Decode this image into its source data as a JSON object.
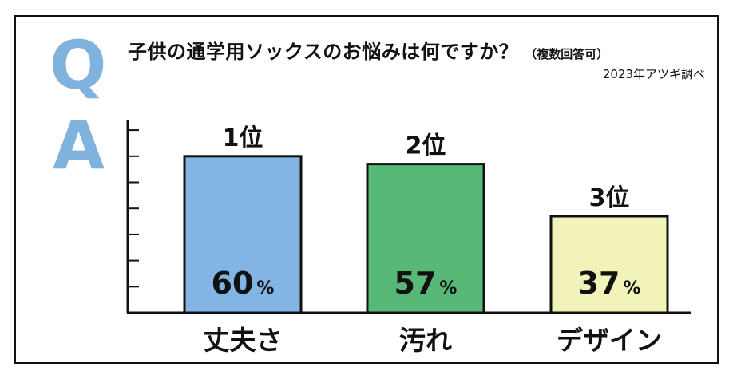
{
  "qa": {
    "q": "Q",
    "a": "A"
  },
  "title": "子供の通学用ソックスのお悩みは何ですか？",
  "title_note": "（複数回答可）",
  "survey_note": "2023年アツギ調べ",
  "colors": {
    "qa_letters": "#7fb2dd",
    "bar_outline": "#111111"
  },
  "chart_data": {
    "type": "bar",
    "categories": [
      "丈夫さ",
      "汚れ",
      "デザイン"
    ],
    "values": [
      60,
      57,
      37
    ],
    "value_unit": "%",
    "ranks": [
      "1位",
      "2位",
      "3位"
    ],
    "bar_colors": [
      "#82b4e4",
      "#58b877",
      "#f1f3b8"
    ],
    "ylim": [
      0,
      70
    ],
    "ytick_step": 10,
    "ytick_labels_shown": false,
    "legend": "none",
    "grid": false
  }
}
